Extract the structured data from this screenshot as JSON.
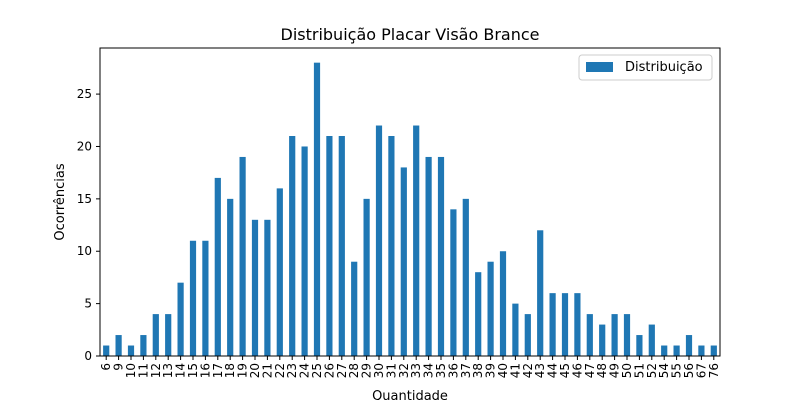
{
  "chart_data": {
    "type": "bar",
    "title": "Distribuição Placar Visão Brance",
    "xlabel": "Quantidade",
    "ylabel": "Ocorrências",
    "ylim": [
      0,
      29.4
    ],
    "yticks": [
      0,
      5,
      10,
      15,
      20,
      25
    ],
    "grid": false,
    "legend_position": "top-right",
    "bar_color": "#1f77b4",
    "categories": [
      "6",
      "9",
      "10",
      "11",
      "12",
      "13",
      "14",
      "15",
      "16",
      "17",
      "18",
      "19",
      "20",
      "21",
      "22",
      "23",
      "24",
      "25",
      "26",
      "27",
      "28",
      "29",
      "30",
      "31",
      "32",
      "33",
      "34",
      "35",
      "36",
      "37",
      "38",
      "39",
      "40",
      "41",
      "42",
      "43",
      "44",
      "45",
      "46",
      "47",
      "48",
      "49",
      "50",
      "51",
      "52",
      "54",
      "55",
      "56",
      "67",
      "76"
    ],
    "series": [
      {
        "name": "Distribuição",
        "values": [
          1,
          2,
          1,
          2,
          4,
          4,
          7,
          11,
          11,
          17,
          15,
          19,
          13,
          13,
          16,
          21,
          20,
          28,
          21,
          21,
          9,
          15,
          22,
          21,
          18,
          22,
          19,
          19,
          14,
          15,
          8,
          9,
          10,
          5,
          4,
          12,
          6,
          6,
          6,
          4,
          3,
          4,
          4,
          2,
          3,
          1,
          1,
          2,
          1,
          1
        ]
      }
    ]
  }
}
